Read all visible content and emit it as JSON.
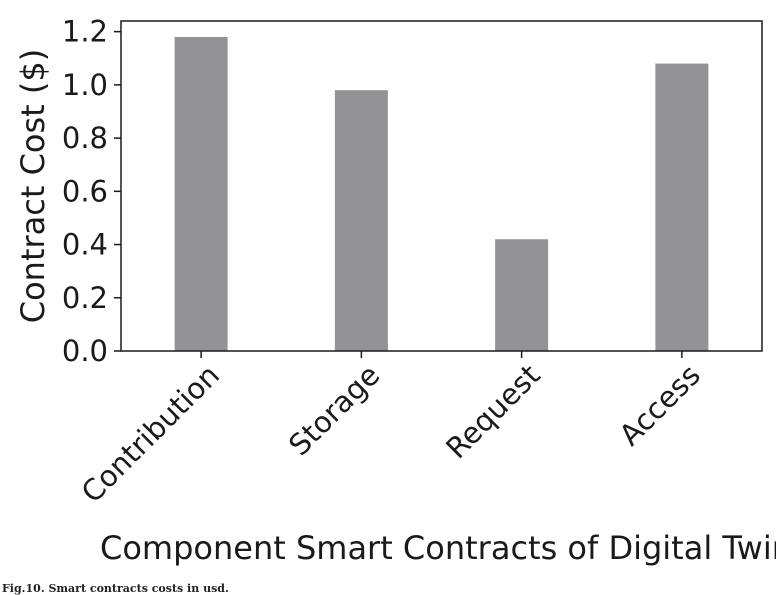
{
  "chart_data": {
    "type": "bar",
    "categories": [
      "Contribution",
      "Storage",
      "Request",
      "Access"
    ],
    "values": [
      1.18,
      0.98,
      0.42,
      1.08
    ],
    "xlabel": "Component Smart Contracts of Digital Twin",
    "ylabel": "Contract Cost ($)",
    "ylim": [
      0,
      1.24
    ],
    "yticks": [
      "0.0",
      "0.2",
      "0.4",
      "0.6",
      "0.8",
      "1.0",
      "1.2"
    ],
    "grid": false,
    "bar_color": "#939396"
  },
  "caption": "Fig.10. Smart contracts costs in usd."
}
